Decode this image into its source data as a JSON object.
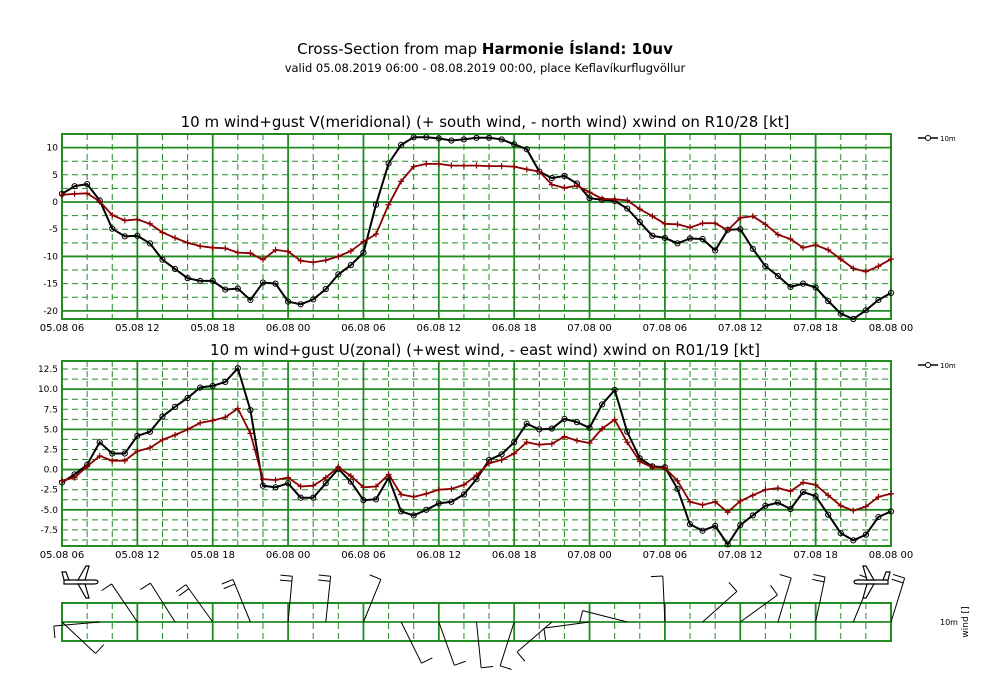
{
  "header": {
    "title_prefix": "Cross-Section from map",
    "title_model": "Harmonie Ísland: 10uv",
    "subtitle": "valid 05.08.2019 06:00 - 08.08.2019 00:00, place Keflavíkurflugvöllur"
  },
  "time_ticks": [
    "05.08 06",
    "05.08 12",
    "05.08 18",
    "06.08 00",
    "06.08 06",
    "06.08 12",
    "06.08 18",
    "07.08 00",
    "07.08 06",
    "07.08 12",
    "07.08 18",
    "08.08 00"
  ],
  "colors": {
    "grid": "#228B22",
    "wind": "#000000",
    "gust": "#8B0000"
  },
  "chart_data": [
    {
      "type": "line",
      "title": "10 m wind+gust V(meridional) (+ south wind, - north wind) xwind on R10/28 [kt]",
      "x_start": "05.08 06:00",
      "x_step_hours": 1,
      "ylim": [
        -21.5,
        12.5
      ],
      "y_ticks": [
        {
          "v": 10,
          "t": "10"
        },
        {
          "v": 5,
          "t": "5"
        },
        {
          "v": 0,
          "t": "0"
        },
        {
          "v": -5,
          "t": "-5"
        },
        {
          "v": -10,
          "t": "-10"
        },
        {
          "v": -15,
          "t": "-15"
        },
        {
          "v": -20,
          "t": "-20"
        }
      ],
      "legend": "10m",
      "series": [
        {
          "role": "wind",
          "marker": "circle",
          "values": [
            1.5,
            2.9,
            3.3,
            0.3,
            -4.9,
            -6.3,
            -6.2,
            -7.6,
            -10.6,
            -12.3,
            -14.0,
            -14.5,
            -14.5,
            -16.1,
            -15.9,
            -18.0,
            -14.8,
            -15.0,
            -18.3,
            -18.8,
            -17.9,
            -16.0,
            -13.3,
            -11.6,
            -9.3,
            -0.5,
            7.1,
            10.5,
            11.9,
            11.9,
            11.7,
            11.3,
            11.5,
            11.8,
            11.8,
            11.5,
            10.6,
            9.7,
            5.6,
            4.4,
            4.8,
            3.4,
            0.7,
            0.4,
            0.2,
            -1.2,
            -3.7,
            -6.2,
            -6.6,
            -7.6,
            -6.7,
            -6.8,
            -8.9,
            -5.1,
            -5.0,
            -8.6,
            -11.8,
            -13.6,
            -15.6,
            -15.0,
            -15.7,
            -18.2,
            -20.5,
            -21.5,
            -19.9,
            -18.0,
            -16.7
          ]
        },
        {
          "role": "gust",
          "marker": "plus",
          "values": [
            1.3,
            1.5,
            1.6,
            0.1,
            -2.4,
            -3.4,
            -3.2,
            -4.0,
            -5.6,
            -6.6,
            -7.5,
            -8.1,
            -8.4,
            -8.5,
            -9.3,
            -9.4,
            -10.6,
            -8.8,
            -9.1,
            -10.8,
            -11.1,
            -10.7,
            -10.0,
            -9.0,
            -7.3,
            -5.9,
            -0.5,
            3.8,
            6.5,
            7.0,
            7.0,
            6.7,
            6.7,
            6.7,
            6.6,
            6.6,
            6.5,
            6.0,
            5.6,
            3.2,
            2.6,
            3.0,
            1.8,
            0.6,
            0.5,
            0.3,
            -1.3,
            -2.6,
            -4.0,
            -4.1,
            -4.7,
            -3.9,
            -3.9,
            -5.2,
            -2.9,
            -2.6,
            -4.1,
            -6.0,
            -6.8,
            -8.4,
            -7.9,
            -8.8,
            -10.5,
            -12.2,
            -12.8,
            -11.8,
            -10.5
          ]
        }
      ]
    },
    {
      "type": "line",
      "title": "10 m wind+gust U(zonal) (+west wind, - east wind) xwind on R01/19 [kt]",
      "x_start": "05.08 06:00",
      "x_step_hours": 1,
      "ylim": [
        -9.5,
        13.5
      ],
      "y_ticks": [
        {
          "v": 12.5,
          "t": "12.5"
        },
        {
          "v": 10,
          "t": "10.0"
        },
        {
          "v": 7.5,
          "t": "7.5"
        },
        {
          "v": 5,
          "t": "5.0"
        },
        {
          "v": 2.5,
          "t": "2.5"
        },
        {
          "v": 0,
          "t": "0.0"
        },
        {
          "v": -2.5,
          "t": "-2.5"
        },
        {
          "v": -5,
          "t": "-5.0"
        },
        {
          "v": -7.5,
          "t": "-7.5"
        }
      ],
      "legend": "10m",
      "series": [
        {
          "role": "wind",
          "marker": "circle",
          "values": [
            -1.6,
            -0.6,
            0.6,
            3.4,
            2.0,
            2.0,
            4.2,
            4.7,
            6.6,
            7.8,
            8.9,
            10.2,
            10.4,
            10.9,
            12.6,
            7.4,
            -2.0,
            -2.2,
            -1.7,
            -3.5,
            -3.5,
            -1.7,
            0.1,
            -1.5,
            -3.8,
            -3.7,
            -1.0,
            -5.2,
            -5.7,
            -5.0,
            -4.2,
            -4.0,
            -3.1,
            -1.2,
            1.2,
            1.9,
            3.4,
            5.7,
            5.0,
            5.1,
            6.3,
            5.9,
            5.2,
            8.1,
            9.9,
            4.7,
            1.4,
            0.4,
            0.3,
            -2.4,
            -6.8,
            -7.6,
            -7.0,
            -9.3,
            -6.9,
            -5.7,
            -4.5,
            -4.1,
            -4.9,
            -2.8,
            -3.3,
            -5.6,
            -7.9,
            -8.8,
            -8.1,
            -5.9,
            -5.2
          ]
        },
        {
          "role": "gust",
          "marker": "plus",
          "values": [
            -1.4,
            -1.0,
            0.4,
            1.7,
            1.1,
            1.1,
            2.3,
            2.7,
            3.7,
            4.3,
            5.0,
            5.8,
            6.1,
            6.5,
            7.6,
            4.5,
            -1.2,
            -1.3,
            -1.0,
            -2.1,
            -2.0,
            -1.0,
            0.3,
            -0.8,
            -2.2,
            -2.1,
            -0.6,
            -3.1,
            -3.4,
            -3.0,
            -2.5,
            -2.4,
            -1.9,
            -0.7,
            0.8,
            1.2,
            2.0,
            3.4,
            3.1,
            3.2,
            4.1,
            3.6,
            3.3,
            5.1,
            6.2,
            3.4,
            1.0,
            0.3,
            0.2,
            -1.4,
            -4.0,
            -4.4,
            -4.0,
            -5.3,
            -3.9,
            -3.2,
            -2.5,
            -2.3,
            -2.7,
            -1.6,
            -1.9,
            -3.2,
            -4.5,
            -5.1,
            -4.6,
            -3.4,
            -3.0
          ]
        }
      ]
    },
    {
      "type": "other",
      "label_unit": "10m",
      "label_var": "wind []"
    }
  ]
}
